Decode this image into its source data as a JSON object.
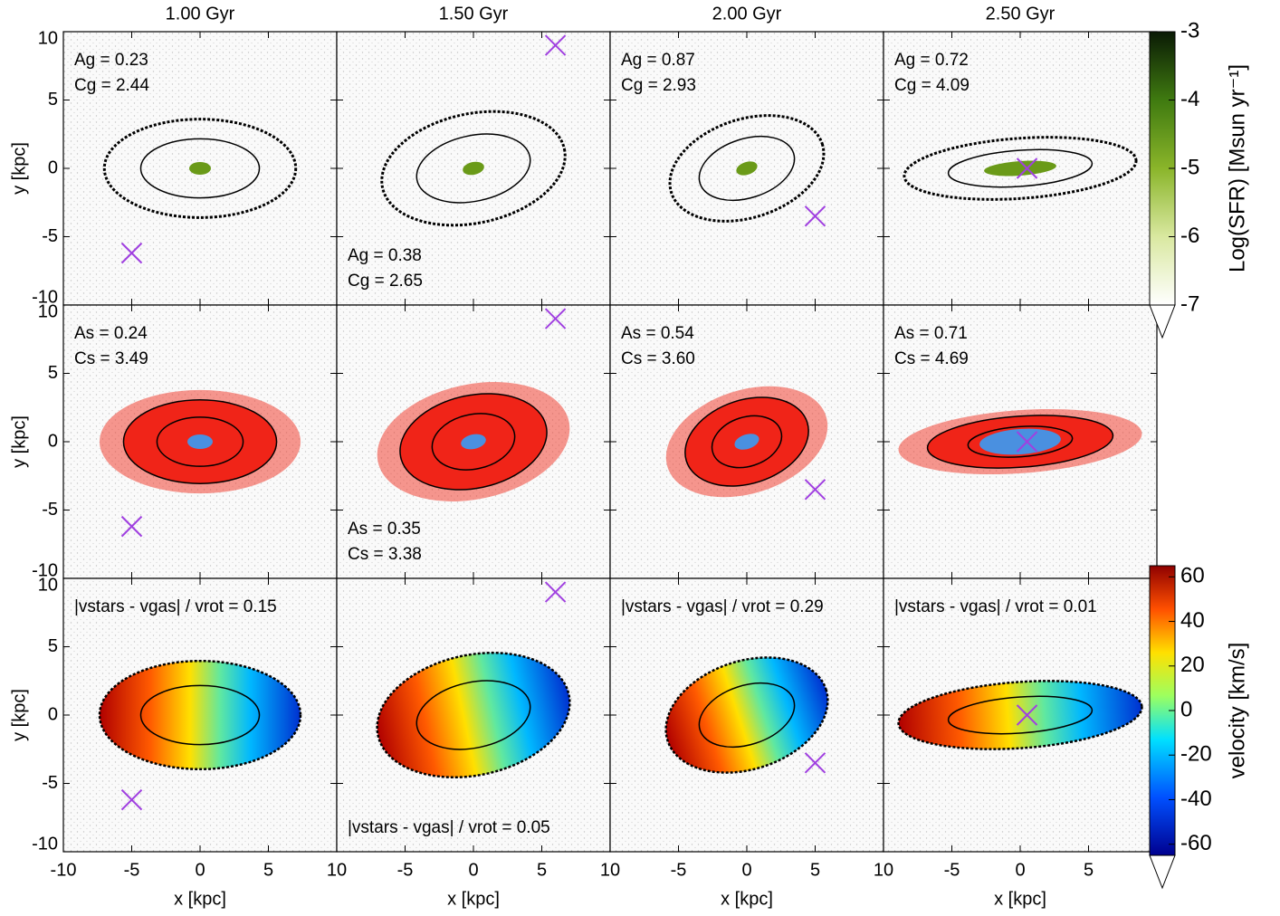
{
  "chart_data": {
    "type": "image-grid",
    "columns": [
      "1.00 Gyr",
      "1.50 Gyr",
      "2.00 Gyr",
      "2.50 Gyr"
    ],
    "xlabel": "x [kpc]",
    "ylabel": "y [kpc]",
    "xlim": [
      -10,
      10
    ],
    "ylim": [
      -10,
      10
    ],
    "xticks": [
      -10,
      -5,
      0,
      5,
      10
    ],
    "yticks": [
      -10,
      -5,
      0,
      5,
      10
    ],
    "annotations": [
      [
        [
          "Ag = 0.23",
          "Cg = 2.44"
        ],
        [
          "Ag = 0.38",
          "Cg = 2.65"
        ],
        [
          "Ag = 0.87",
          "Cg = 2.93"
        ],
        [
          "Ag = 0.72",
          "Cg = 4.09"
        ]
      ],
      [
        [
          "As = 0.24",
          "Cs = 3.49"
        ],
        [
          "As = 0.35",
          "Cs = 3.38"
        ],
        [
          "As = 0.54",
          "Cs = 3.60"
        ],
        [
          "As = 0.71",
          "Cs = 4.69"
        ]
      ],
      [
        [
          "|vstars - vgas| / vrot = 0.15"
        ],
        [
          "|vstars - vgas| / vrot = 0.05"
        ],
        [
          "|vstars - vgas| / vrot = 0.29"
        ],
        [
          "|vstars - vgas| / vrot = 0.01"
        ]
      ]
    ],
    "companion": {
      "x": [
        -5,
        6,
        5,
        0.5
      ],
      "y": [
        -6.2,
        9,
        -3.5,
        0
      ]
    },
    "colorbars": [
      {
        "label": "Log(SFR) [Msun yr⁻¹]",
        "lim": [
          -7,
          -3
        ],
        "ticks": [
          -7,
          -6,
          -5,
          -4,
          -3
        ]
      },
      {
        "label": "velocity [km/s]",
        "lim": [
          -65,
          65
        ],
        "ticks": [
          -60,
          -40,
          -20,
          0,
          20,
          40,
          60
        ]
      }
    ]
  }
}
